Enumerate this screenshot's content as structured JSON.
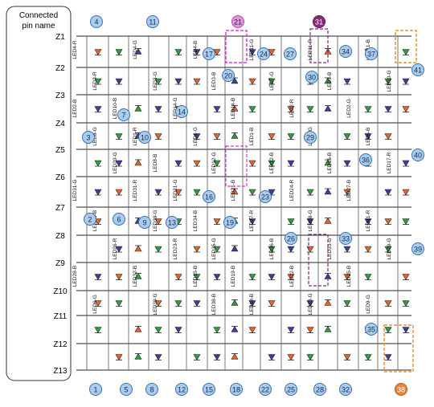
{
  "header": {
    "title": "Connected pin name"
  },
  "pins": [
    "Z1",
    "Z2",
    "Z3",
    "Z4",
    "Z5",
    "Z6",
    "Z7",
    "Z8",
    "Z9",
    "Z10",
    "Z11",
    "Z12",
    "Z13"
  ],
  "top_numbers": [
    "4",
    "11",
    "21",
    "31"
  ],
  "bottom_numbers": [
    "1",
    "5",
    "8",
    "12",
    "15",
    "18",
    "22",
    "25",
    "28",
    "32",
    "38"
  ],
  "right_numbers": [
    "41",
    "40",
    "39"
  ],
  "inner_numbers": [
    "17",
    "20",
    "24",
    "27",
    "30",
    "34",
    "37",
    "14",
    "7",
    "3",
    "10",
    "29",
    "36",
    "16",
    "23",
    "19",
    "2",
    "6",
    "9",
    "13",
    "26",
    "33",
    "35"
  ],
  "led_labels": [
    "LED4-R",
    "LED4-G",
    "LED4-B",
    "LED11-G",
    "LED11-R",
    "LED11-B",
    "LED3-R",
    "LED3-G",
    "LED3-B",
    "LED7-G",
    "LED7-B",
    "LED10-G",
    "LED10-B",
    "LED14-G",
    "LED14-B",
    "LED2-R",
    "LED2-G",
    "LED2-B",
    "LED1-R",
    "LED1-G",
    "LED1-B",
    "LED5-G",
    "LED5-B",
    "LED8-G",
    "LED8-B",
    "LED12-G",
    "LED12-B",
    "LED16-B",
    "LED17-R",
    "LED20-G",
    "LED21-G",
    "LED21-B",
    "LED24-R",
    "LED27-B",
    "LED31-G",
    "LED31-R",
    "LED34-B",
    "LED37-R",
    "LED38-G",
    "LED41-R",
    "LED40-B",
    "LED39-G",
    "LED35-G",
    "LED36-B",
    "LED33-G",
    "LED29-G",
    "LED26-R",
    "LED23-R",
    "LED19-B",
    "LED22-B",
    "LED25-B",
    "LED28-B",
    "LED32-B",
    "LED15-B",
    "LED18-B",
    "LED13-G",
    "LED9-G",
    "LED6-G",
    "LED30-G",
    "LED38-B"
  ],
  "colors": {
    "led_red": "#e8632a",
    "led_green": "#2f9e3c",
    "led_blue": "#3b3f9e",
    "badge_fill": "#a9cdef",
    "badge_stroke": "#3a6fb0",
    "highlight_pink": "#d83bd6",
    "highlight_orange": "#e8943a",
    "badge_21": "#e693d9",
    "badge_31": "#8b2a7a",
    "badge_38": "#e8843a"
  }
}
